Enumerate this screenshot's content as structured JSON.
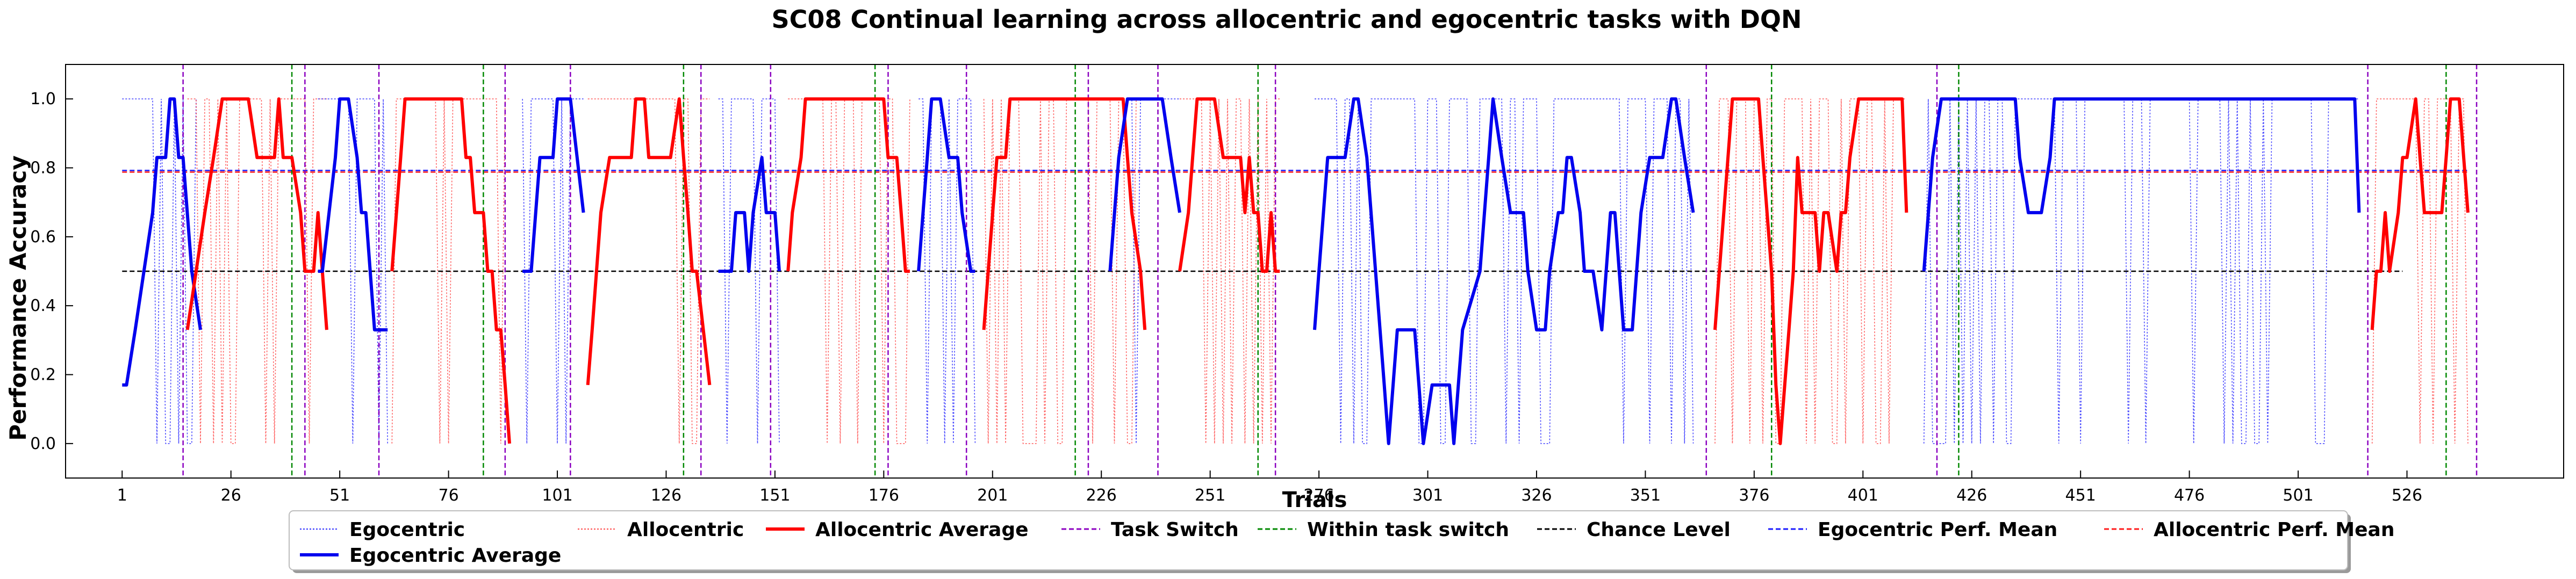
{
  "chart_data": {
    "type": "line",
    "title": "SC08 Continual learning across allocentric and egocentric tasks with DQN",
    "ylabel": "Performance Accuracy",
    "xlabel": "Trials",
    "xlim": [
      -12,
      562
    ],
    "ylim": [
      -0.1,
      1.1
    ],
    "x_ticks": [
      1,
      26,
      51,
      76,
      101,
      126,
      151,
      176,
      201,
      226,
      251,
      276,
      301,
      326,
      351,
      376,
      401,
      426,
      451,
      476,
      501,
      526
    ],
    "y_ticks": [
      "0.0",
      "0.2",
      "0.4",
      "0.6",
      "0.8",
      "1.0"
    ],
    "grid": false,
    "legend_position": "bottom-center",
    "legend": [
      {
        "label": "Egocentric",
        "key": "ego"
      },
      {
        "label": "Allocentric",
        "key": "allo"
      },
      {
        "label": "Allocentric Average",
        "key": "allo_avg"
      },
      {
        "label": "Task Switch",
        "key": "task_switch"
      },
      {
        "label": "Within task switch",
        "key": "within_switch"
      },
      {
        "label": "Chance Level",
        "key": "chance"
      },
      {
        "label": "Egocentric Perf. Mean",
        "key": "ego_mean"
      },
      {
        "label": "Allocentric Perf. Mean",
        "key": "allo_mean"
      },
      {
        "label": "Egocentric Average",
        "key": "ego_avg"
      }
    ],
    "colors": {
      "ego": "#2b2bff",
      "allo": "#ff4a4a",
      "allo_avg": "#ff0000",
      "ego_avg": "#0000ee",
      "task_switch": "#8b00c0",
      "within_switch": "#008800",
      "chance": "#000000",
      "ego_mean": "#1a1aff",
      "allo_mean": "#ff1a1a"
    },
    "chance_level": 0.5,
    "egocentric_perf_mean": 0.79,
    "allocentric_perf_mean": 0.79,
    "task_switches": [
      15,
      43,
      60,
      89,
      104,
      134,
      150,
      177,
      195,
      223,
      239,
      266,
      365,
      418,
      517,
      542
    ],
    "within_task_switches": [
      40,
      84,
      130,
      174,
      220,
      262,
      380,
      423,
      535
    ],
    "segments": [
      {
        "task": "ego",
        "range": [
          1,
          15
        ],
        "avg": [
          [
            1,
            0.17
          ],
          [
            2,
            0.17
          ],
          [
            4,
            0.33
          ],
          [
            6,
            0.5
          ],
          [
            8,
            0.67
          ],
          [
            9,
            0.83
          ],
          [
            11,
            0.83
          ],
          [
            12,
            1.0
          ],
          [
            13,
            1.0
          ],
          [
            14,
            0.83
          ],
          [
            15,
            0.83
          ],
          [
            17,
            0.5
          ],
          [
            19,
            0.33
          ]
        ],
        "raw_ranges": [
          [
            1,
            18
          ]
        ]
      },
      {
        "task": "allo",
        "range": [
          15,
          43
        ],
        "avg": [
          [
            16,
            0.33
          ],
          [
            18,
            0.5
          ],
          [
            20,
            0.67
          ],
          [
            22,
            0.83
          ],
          [
            24,
            1.0
          ],
          [
            30,
            1.0
          ],
          [
            32,
            0.83
          ],
          [
            36,
            0.83
          ],
          [
            37,
            1.0
          ],
          [
            38,
            0.83
          ],
          [
            40,
            0.83
          ],
          [
            42,
            0.67
          ],
          [
            43,
            0.5
          ],
          [
            45,
            0.5
          ],
          [
            46,
            0.67
          ],
          [
            47,
            0.5
          ],
          [
            48,
            0.33
          ]
        ],
        "raw_ranges": [
          [
            16,
            48
          ]
        ]
      },
      {
        "task": "ego",
        "range": [
          43,
          60
        ],
        "avg": [
          [
            46,
            0.5
          ],
          [
            47,
            0.5
          ],
          [
            50,
            0.83
          ],
          [
            51,
            1.0
          ],
          [
            53,
            1.0
          ],
          [
            55,
            0.83
          ],
          [
            56,
            0.67
          ],
          [
            57,
            0.67
          ],
          [
            58,
            0.5
          ],
          [
            59,
            0.33
          ],
          [
            62,
            0.33
          ]
        ],
        "raw_ranges": [
          [
            46,
            62
          ]
        ]
      },
      {
        "task": "allo",
        "range": [
          60,
          89
        ],
        "avg": [
          [
            63,
            0.5
          ],
          [
            65,
            0.83
          ],
          [
            66,
            1.0
          ],
          [
            79,
            1.0
          ],
          [
            80,
            0.83
          ],
          [
            81,
            0.83
          ],
          [
            82,
            0.67
          ],
          [
            84,
            0.67
          ],
          [
            85,
            0.5
          ],
          [
            86,
            0.5
          ],
          [
            87,
            0.33
          ],
          [
            88,
            0.33
          ],
          [
            89,
            0.17
          ],
          [
            90,
            0.0
          ]
        ],
        "raw_ranges": [
          [
            63,
            90
          ]
        ]
      },
      {
        "task": "ego",
        "range": [
          89,
          104
        ],
        "avg": [
          [
            93,
            0.5
          ],
          [
            95,
            0.5
          ],
          [
            97,
            0.83
          ],
          [
            100,
            0.83
          ],
          [
            101,
            1.0
          ],
          [
            104,
            1.0
          ],
          [
            107,
            0.67
          ]
        ],
        "raw_ranges": [
          [
            93,
            107
          ]
        ]
      },
      {
        "task": "allo",
        "range": [
          104,
          134
        ],
        "avg": [
          [
            108,
            0.17
          ],
          [
            109,
            0.33
          ],
          [
            111,
            0.67
          ],
          [
            113,
            0.83
          ],
          [
            118,
            0.83
          ],
          [
            119,
            1.0
          ],
          [
            121,
            1.0
          ],
          [
            122,
            0.83
          ],
          [
            127,
            0.83
          ],
          [
            129,
            1.0
          ],
          [
            130,
            0.83
          ],
          [
            131,
            0.67
          ],
          [
            132,
            0.5
          ],
          [
            133,
            0.5
          ],
          [
            136,
            0.17
          ]
        ],
        "raw_ranges": [
          [
            108,
            136
          ]
        ]
      },
      {
        "task": "ego",
        "range": [
          134,
          150
        ],
        "avg": [
          [
            138,
            0.5
          ],
          [
            141,
            0.5
          ],
          [
            142,
            0.67
          ],
          [
            144,
            0.67
          ],
          [
            145,
            0.5
          ],
          [
            146,
            0.67
          ],
          [
            148,
            0.83
          ],
          [
            149,
            0.67
          ],
          [
            151,
            0.67
          ],
          [
            152,
            0.5
          ]
        ],
        "raw_ranges": [
          [
            138,
            152
          ]
        ]
      },
      {
        "task": "allo",
        "range": [
          150,
          177
        ],
        "avg": [
          [
            154,
            0.5
          ],
          [
            155,
            0.67
          ],
          [
            157,
            0.83
          ],
          [
            158,
            1.0
          ],
          [
            176,
            1.0
          ],
          [
            177,
            0.83
          ],
          [
            179,
            0.83
          ],
          [
            180,
            0.67
          ],
          [
            181,
            0.5
          ],
          [
            182,
            0.5
          ]
        ],
        "raw_ranges": [
          [
            154,
            182
          ]
        ]
      },
      {
        "task": "ego",
        "range": [
          177,
          195
        ],
        "avg": [
          [
            184,
            0.5
          ],
          [
            186,
            0.83
          ],
          [
            187,
            1.0
          ],
          [
            189,
            1.0
          ],
          [
            191,
            0.83
          ],
          [
            193,
            0.83
          ],
          [
            194,
            0.67
          ],
          [
            196,
            0.5
          ],
          [
            197,
            0.5
          ]
        ],
        "raw_ranges": [
          [
            184,
            197
          ]
        ]
      },
      {
        "task": "allo",
        "range": [
          195,
          223
        ],
        "avg": [
          [
            199,
            0.33
          ],
          [
            200,
            0.5
          ],
          [
            202,
            0.83
          ],
          [
            204,
            0.83
          ],
          [
            205,
            1.0
          ],
          [
            231,
            1.0
          ],
          [
            232,
            0.83
          ],
          [
            233,
            0.67
          ],
          [
            235,
            0.5
          ],
          [
            236,
            0.33
          ]
        ],
        "raw_ranges": [
          [
            199,
            236
          ]
        ]
      },
      {
        "task": "ego",
        "range": [
          223,
          239
        ],
        "avg": [
          [
            228,
            0.5
          ],
          [
            230,
            0.83
          ],
          [
            232,
            1.0
          ],
          [
            240,
            1.0
          ],
          [
            242,
            0.83
          ],
          [
            244,
            0.67
          ]
        ],
        "raw_ranges": [
          [
            228,
            244
          ]
        ]
      },
      {
        "task": "allo",
        "range": [
          239,
          266
        ],
        "avg": [
          [
            244,
            0.5
          ],
          [
            246,
            0.67
          ],
          [
            248,
            1.0
          ],
          [
            252,
            1.0
          ],
          [
            254,
            0.83
          ],
          [
            258,
            0.83
          ],
          [
            259,
            0.67
          ],
          [
            260,
            0.83
          ],
          [
            261,
            0.67
          ],
          [
            262,
            0.67
          ],
          [
            263,
            0.5
          ],
          [
            264,
            0.5
          ],
          [
            265,
            0.67
          ],
          [
            266,
            0.5
          ],
          [
            267,
            0.5
          ]
        ],
        "raw_ranges": [
          [
            244,
            267
          ]
        ]
      },
      {
        "task": "ego",
        "range": [
          266,
          365
        ],
        "avg": [
          [
            275,
            0.33
          ],
          [
            276,
            0.5
          ],
          [
            278,
            0.83
          ],
          [
            282,
            0.83
          ],
          [
            284,
            1.0
          ],
          [
            285,
            1.0
          ],
          [
            287,
            0.83
          ],
          [
            289,
            0.5
          ],
          [
            291,
            0.17
          ],
          [
            292,
            0.0
          ],
          [
            294,
            0.33
          ],
          [
            298,
            0.33
          ],
          [
            300,
            0.0
          ],
          [
            302,
            0.17
          ],
          [
            306,
            0.17
          ],
          [
            307,
            0.0
          ],
          [
            309,
            0.33
          ],
          [
            313,
            0.5
          ],
          [
            315,
            0.83
          ],
          [
            316,
            1.0
          ],
          [
            318,
            0.83
          ],
          [
            320,
            0.67
          ],
          [
            323,
            0.67
          ],
          [
            324,
            0.5
          ],
          [
            326,
            0.33
          ],
          [
            328,
            0.33
          ],
          [
            329,
            0.5
          ],
          [
            331,
            0.67
          ],
          [
            332,
            0.67
          ],
          [
            333,
            0.83
          ],
          [
            334,
            0.83
          ],
          [
            336,
            0.67
          ],
          [
            337,
            0.5
          ],
          [
            339,
            0.5
          ],
          [
            341,
            0.33
          ],
          [
            343,
            0.67
          ],
          [
            344,
            0.67
          ],
          [
            346,
            0.33
          ],
          [
            348,
            0.33
          ],
          [
            350,
            0.67
          ],
          [
            352,
            0.83
          ],
          [
            355,
            0.83
          ],
          [
            357,
            1.0
          ],
          [
            358,
            1.0
          ],
          [
            360,
            0.83
          ],
          [
            362,
            0.67
          ]
        ],
        "raw_ranges": [
          [
            275,
            362
          ]
        ]
      },
      {
        "task": "allo",
        "range": [
          365,
          418
        ],
        "avg": [
          [
            367,
            0.33
          ],
          [
            368,
            0.5
          ],
          [
            371,
            1.0
          ],
          [
            377,
            1.0
          ],
          [
            378,
            0.83
          ],
          [
            380,
            0.5
          ],
          [
            381,
            0.17
          ],
          [
            382,
            0.0
          ],
          [
            384,
            0.33
          ],
          [
            385,
            0.5
          ],
          [
            386,
            0.83
          ],
          [
            387,
            0.67
          ],
          [
            390,
            0.67
          ],
          [
            391,
            0.5
          ],
          [
            392,
            0.67
          ],
          [
            393,
            0.67
          ],
          [
            395,
            0.5
          ],
          [
            396,
            0.67
          ],
          [
            397,
            0.67
          ],
          [
            398,
            0.83
          ],
          [
            400,
            1.0
          ],
          [
            410,
            1.0
          ],
          [
            411,
            0.67
          ]
        ],
        "raw_ranges": [
          [
            367,
            411
          ]
        ]
      },
      {
        "task": "ego",
        "range": [
          418,
          517
        ],
        "avg": [
          [
            415,
            0.5
          ],
          [
            417,
            0.83
          ],
          [
            419,
            1.0
          ],
          [
            436,
            1.0
          ],
          [
            437,
            0.83
          ],
          [
            439,
            0.67
          ],
          [
            442,
            0.67
          ],
          [
            444,
            0.83
          ],
          [
            445,
            1.0
          ],
          [
            514,
            1.0
          ],
          [
            515,
            0.67
          ]
        ],
        "raw_ranges": [
          [
            415,
            515
          ]
        ]
      },
      {
        "task": "allo",
        "range": [
          517,
          542
        ],
        "avg": [
          [
            518,
            0.33
          ],
          [
            519,
            0.5
          ],
          [
            520,
            0.5
          ],
          [
            521,
            0.67
          ],
          [
            522,
            0.5
          ],
          [
            524,
            0.67
          ],
          [
            525,
            0.83
          ],
          [
            526,
            0.83
          ],
          [
            528,
            1.0
          ],
          [
            529,
            0.83
          ],
          [
            530,
            0.67
          ],
          [
            534,
            0.67
          ],
          [
            535,
            0.83
          ],
          [
            536,
            1.0
          ],
          [
            538,
            1.0
          ],
          [
            540,
            0.67
          ]
        ],
        "raw_ranges": [
          [
            518,
            540
          ]
        ]
      }
    ]
  }
}
